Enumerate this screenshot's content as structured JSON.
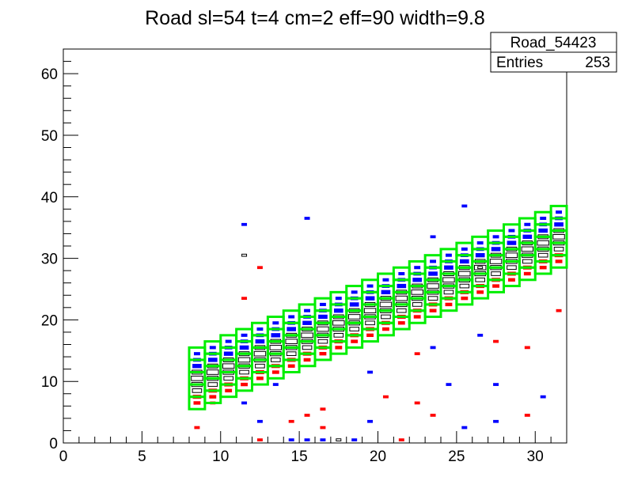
{
  "chart_data": {
    "type": "heatmap",
    "title": "Road sl=54 t=4 cm=2 eff=90 width=9.8",
    "xlabel": "",
    "ylabel": "",
    "xlim": [
      0,
      32
    ],
    "ylim": [
      0,
      64
    ],
    "x_ticks": [
      0,
      5,
      10,
      15,
      20,
      25,
      30
    ],
    "y_ticks": [
      0,
      10,
      20,
      30,
      40,
      50,
      60
    ],
    "grid": false,
    "stats_box": {
      "name": "Road_54423",
      "entries_label": "Entries",
      "entries_value": "253"
    },
    "road_band": {
      "x_start": 8,
      "x_end": 31,
      "lower_start": 5.5,
      "lower_slope": 1.0,
      "height": 9.5,
      "box_width": 1,
      "box_height": 2
    },
    "colors": {
      "road": "#00ee00",
      "hits_blue": "#0000ff",
      "hits_red": "#ff0000",
      "hits_black": "#000000"
    },
    "scattered_hits": [
      {
        "x": 8.5,
        "y": 2.5,
        "color": "red"
      },
      {
        "x": 9.5,
        "y": 6.5,
        "color": "red"
      },
      {
        "x": 12.5,
        "y": 0.5,
        "color": "red"
      },
      {
        "x": 12.5,
        "y": 28.5,
        "color": "red"
      },
      {
        "x": 14.5,
        "y": 3.5,
        "color": "red"
      },
      {
        "x": 15.5,
        "y": 4.5,
        "color": "red"
      },
      {
        "x": 16.5,
        "y": 5.5,
        "color": "red"
      },
      {
        "x": 16.5,
        "y": 2.5,
        "color": "red"
      },
      {
        "x": 21.5,
        "y": 0.5,
        "color": "red"
      },
      {
        "x": 20.5,
        "y": 7.5,
        "color": "red"
      },
      {
        "x": 22.5,
        "y": 6.5,
        "color": "red"
      },
      {
        "x": 22.5,
        "y": 14.5,
        "color": "red"
      },
      {
        "x": 23.5,
        "y": 4.5,
        "color": "red"
      },
      {
        "x": 27.5,
        "y": 16.5,
        "color": "red"
      },
      {
        "x": 29.5,
        "y": 15.5,
        "color": "red"
      },
      {
        "x": 29.5,
        "y": 4.5,
        "color": "red"
      },
      {
        "x": 31.5,
        "y": 21.5,
        "color": "red"
      },
      {
        "x": 11.5,
        "y": 23.5,
        "color": "red"
      },
      {
        "x": 11.5,
        "y": 35.5,
        "color": "blue"
      },
      {
        "x": 12.5,
        "y": 16.5,
        "color": "blue"
      },
      {
        "x": 13.5,
        "y": 9.5,
        "color": "blue"
      },
      {
        "x": 12.5,
        "y": 3.5,
        "color": "blue"
      },
      {
        "x": 15.5,
        "y": 36.5,
        "color": "blue"
      },
      {
        "x": 15.5,
        "y": 0.5,
        "color": "blue"
      },
      {
        "x": 16.5,
        "y": 0.5,
        "color": "blue"
      },
      {
        "x": 19.5,
        "y": 11.5,
        "color": "blue"
      },
      {
        "x": 19.5,
        "y": 3.5,
        "color": "blue"
      },
      {
        "x": 23.5,
        "y": 33.5,
        "color": "blue"
      },
      {
        "x": 23.5,
        "y": 15.5,
        "color": "blue"
      },
      {
        "x": 24.5,
        "y": 9.5,
        "color": "blue"
      },
      {
        "x": 25.5,
        "y": 38.5,
        "color": "blue"
      },
      {
        "x": 25.5,
        "y": 2.5,
        "color": "blue"
      },
      {
        "x": 26.5,
        "y": 17.5,
        "color": "blue"
      },
      {
        "x": 27.5,
        "y": 9.5,
        "color": "blue"
      },
      {
        "x": 27.5,
        "y": 3.5,
        "color": "blue"
      },
      {
        "x": 30.5,
        "y": 7.5,
        "color": "blue"
      },
      {
        "x": 18.5,
        "y": 0.5,
        "color": "blue"
      },
      {
        "x": 14.5,
        "y": 0.5,
        "color": "blue"
      },
      {
        "x": 11.5,
        "y": 6.5,
        "color": "blue"
      },
      {
        "x": 11.5,
        "y": 30.5,
        "color": "black"
      },
      {
        "x": 17.5,
        "y": 0.5,
        "color": "black"
      },
      {
        "x": 26.5,
        "y": 28.5,
        "color": "black"
      }
    ]
  }
}
